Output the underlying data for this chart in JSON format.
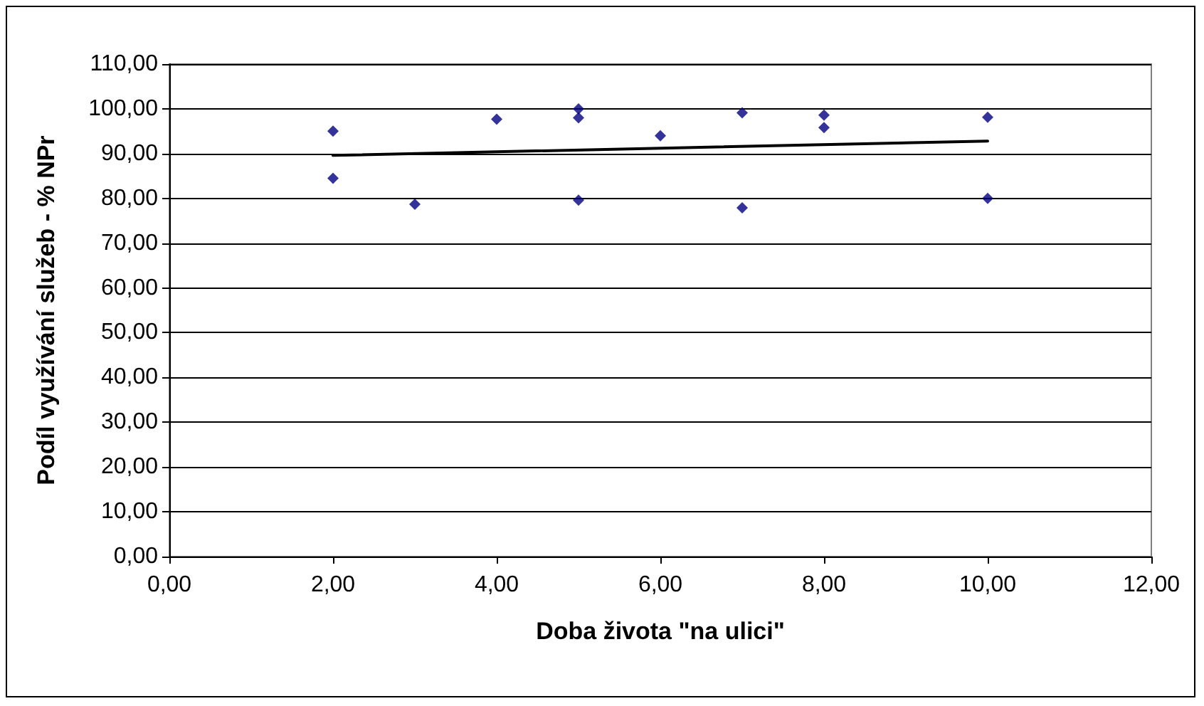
{
  "chart_data": {
    "type": "scatter",
    "xlabel": "Doba života \"na ulici\"",
    "ylabel": "Podíl využívání služeb - % NPr",
    "series": [
      {
        "color": "#000080",
        "marker": "diamond",
        "x": [
          2,
          2,
          3,
          4,
          5,
          5,
          5,
          6,
          7,
          7,
          8,
          8,
          10,
          10
        ],
        "values": [
          95.0,
          84.5,
          78.7,
          97.7,
          100.0,
          98.0,
          79.6,
          94.0,
          99.1,
          77.9,
          98.6,
          95.8,
          98.1,
          80.0
        ]
      },
      {
        "type": "line",
        "color": "#000000",
        "marker": "none",
        "x": [
          2,
          10
        ],
        "values": [
          89.6,
          92.8
        ]
      }
    ],
    "xlim": [
      0,
      12
    ],
    "xticks": [
      {
        "value": 0,
        "label": "0,00"
      },
      {
        "value": 2,
        "label": "2,00"
      },
      {
        "value": 4,
        "label": "4,00"
      },
      {
        "value": 6,
        "label": "6,00"
      },
      {
        "value": 8,
        "label": "8,00"
      },
      {
        "value": 10,
        "label": "10,00"
      },
      {
        "value": 12,
        "label": "12,00"
      }
    ],
    "ylim": [
      0,
      110
    ],
    "yticks": [
      {
        "value": 0,
        "label": "0,00"
      },
      {
        "value": 10,
        "label": "10,00"
      },
      {
        "value": 20,
        "label": "20,00"
      },
      {
        "value": 30,
        "label": "30,00"
      },
      {
        "value": 40,
        "label": "40,00"
      },
      {
        "value": 50,
        "label": "50,00"
      },
      {
        "value": 60,
        "label": "60,00"
      },
      {
        "value": 70,
        "label": "70,00"
      },
      {
        "value": 80,
        "label": "80,00"
      },
      {
        "value": 90,
        "label": "90,00"
      },
      {
        "value": 100,
        "label": "100,00"
      },
      {
        "value": 110,
        "label": "110,00"
      }
    ],
    "grid": "y"
  }
}
